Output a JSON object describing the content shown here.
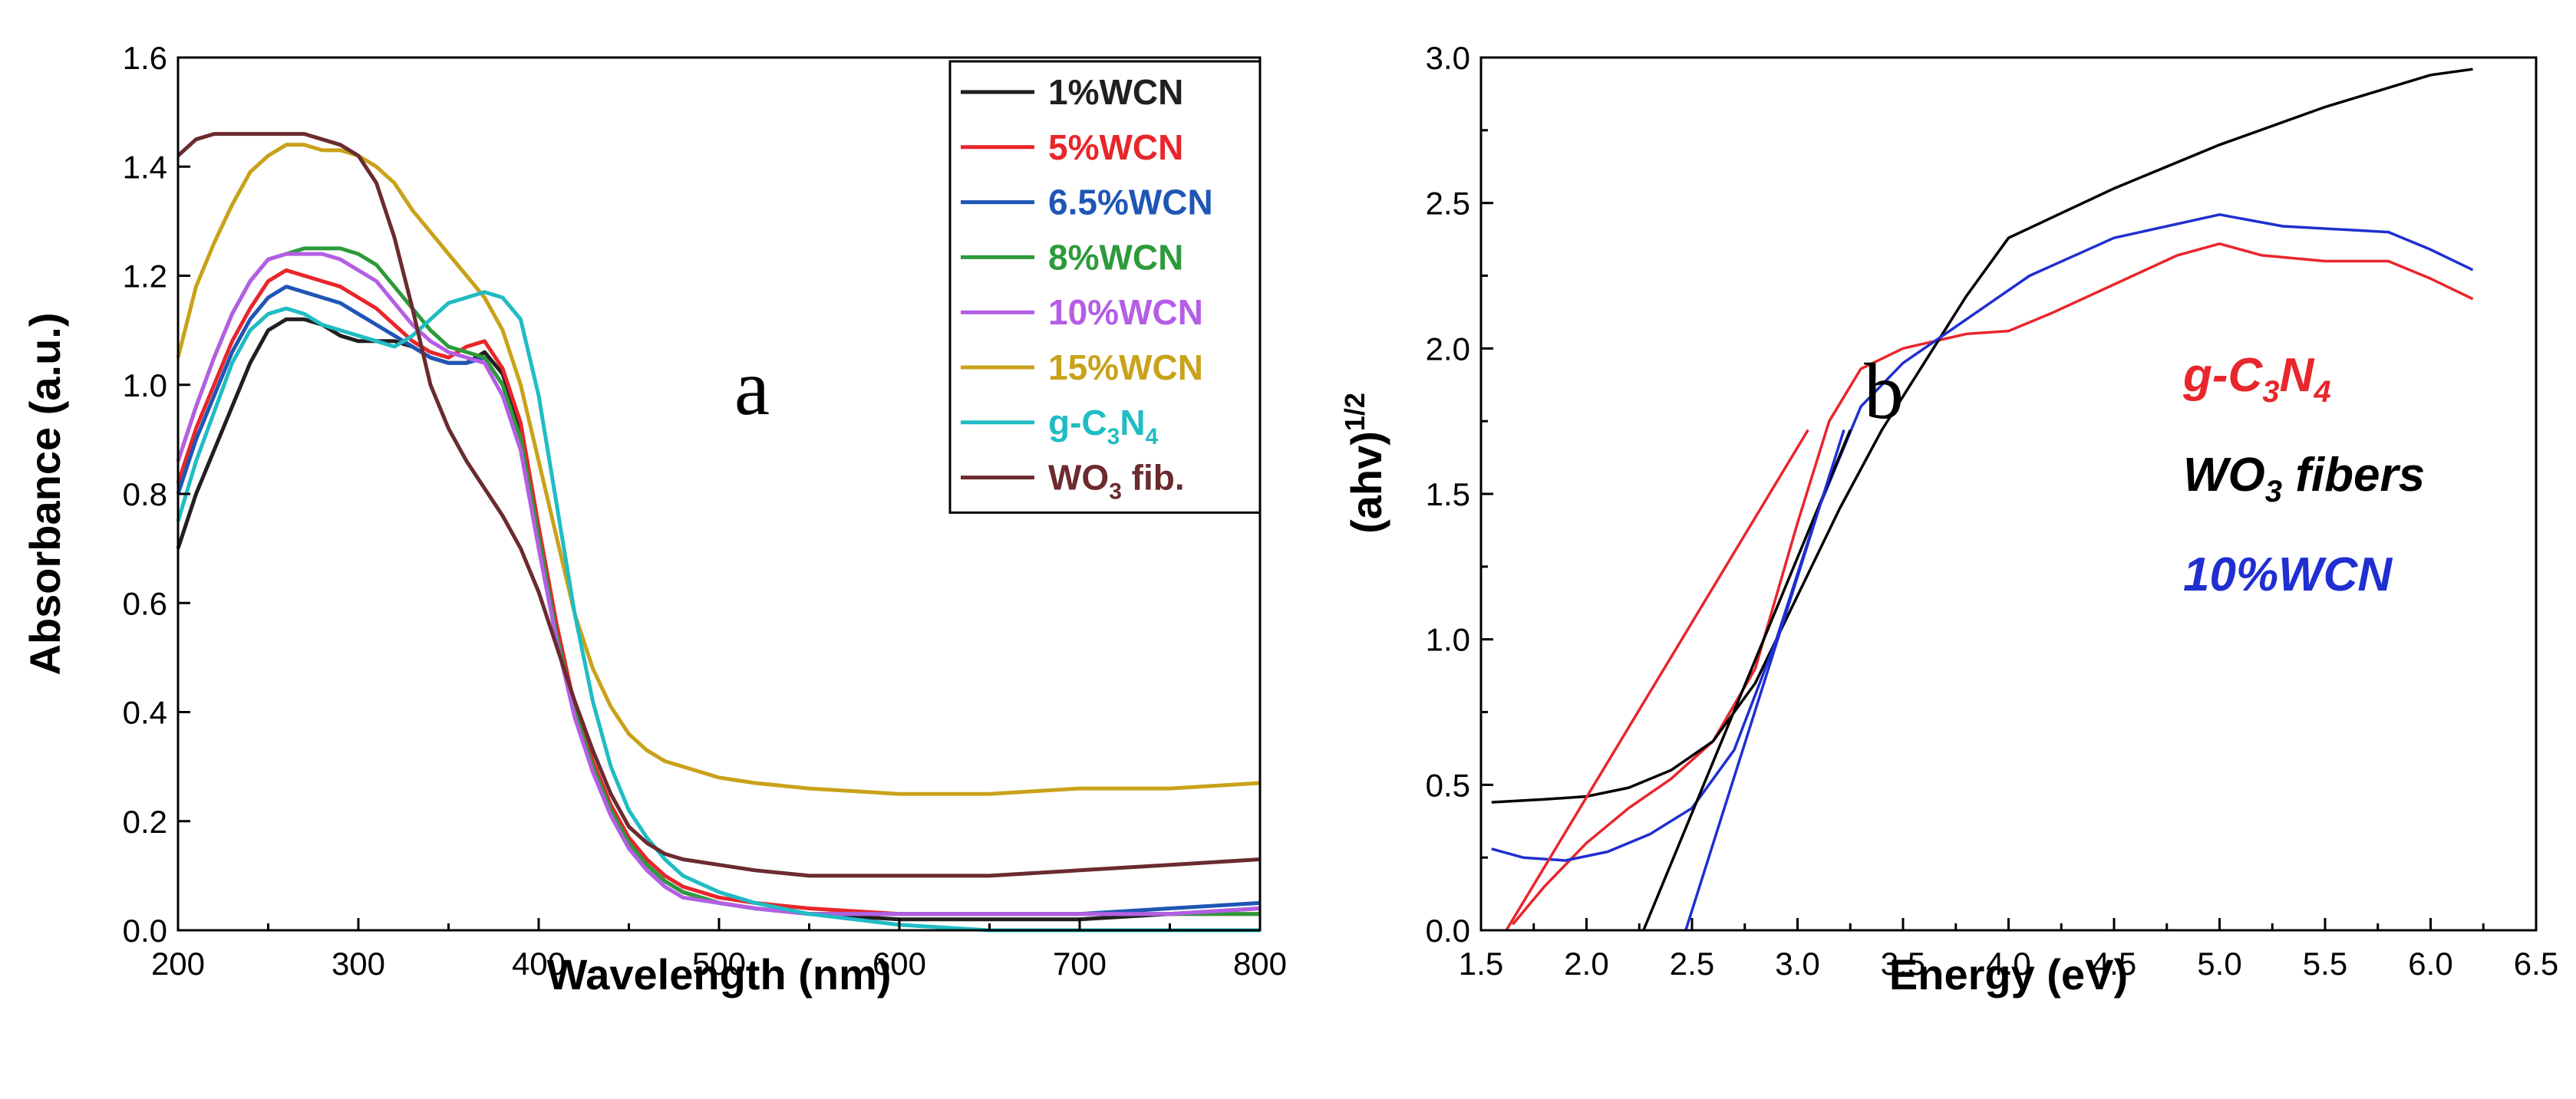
{
  "colors": {
    "1%WCN": "#231f20",
    "5%WCN": "#e8262b",
    "6.5%WCN": "#1f56b5",
    "8%WCN": "#2d9a3b",
    "10%WCN": "#b45ee5",
    "15%WCN": "#c9a21a",
    "g-C3N4": "#20bcc4",
    "WO3 fib.": "#6b2b2f"
  },
  "chart_data": [
    {
      "type": "line",
      "panel_letter": "a",
      "xlabel": "Wavelength (nm)",
      "ylabel": "Absorbance (a.u.)",
      "xlim": [
        200,
        800
      ],
      "ylim": [
        0,
        1.6
      ],
      "xticks": [
        "200",
        "300",
        "400",
        "500",
        "600",
        "700",
        "800"
      ],
      "yticks": [
        "0.0",
        "0.2",
        "0.4",
        "0.6",
        "0.8",
        "1.0",
        "1.2",
        "1.4",
        "1.6"
      ],
      "legend_position": "top-right",
      "legend": [
        {
          "key": "1%WCN",
          "label": "1%WCN"
        },
        {
          "key": "5%WCN",
          "label": "5%WCN"
        },
        {
          "key": "6.5%WCN",
          "label": "6.5%WCN"
        },
        {
          "key": "8%WCN",
          "label": "8%WCN"
        },
        {
          "key": "10%WCN",
          "label": "10%WCN"
        },
        {
          "key": "15%WCN",
          "label": "15%WCN"
        },
        {
          "key": "g-C3N4",
          "label_main": "g-C",
          "label_sub1": "3",
          "label_mid": "N",
          "label_sub2": "4"
        },
        {
          "key": "WO3 fib.",
          "label_main": "WO",
          "label_sub1": "3",
          "label_end": " fib."
        }
      ],
      "series": [
        {
          "name": "1%WCN",
          "x": [
            200,
            210,
            220,
            230,
            240,
            250,
            260,
            270,
            280,
            290,
            300,
            310,
            320,
            330,
            340,
            350,
            360,
            370,
            380,
            390,
            400,
            410,
            420,
            430,
            440,
            450,
            460,
            470,
            480,
            500,
            520,
            550,
            600,
            650,
            700,
            750,
            800
          ],
          "y": [
            0.7,
            0.8,
            0.88,
            0.96,
            1.04,
            1.1,
            1.12,
            1.12,
            1.11,
            1.09,
            1.08,
            1.08,
            1.08,
            1.07,
            1.05,
            1.04,
            1.04,
            1.06,
            1.02,
            0.92,
            0.73,
            0.55,
            0.4,
            0.3,
            0.22,
            0.16,
            0.12,
            0.09,
            0.07,
            0.05,
            0.04,
            0.03,
            0.02,
            0.02,
            0.02,
            0.03,
            0.04
          ]
        },
        {
          "name": "5%WCN",
          "x": [
            200,
            210,
            220,
            230,
            240,
            250,
            260,
            270,
            280,
            290,
            300,
            310,
            320,
            330,
            340,
            350,
            360,
            370,
            380,
            390,
            400,
            410,
            420,
            430,
            440,
            450,
            460,
            470,
            480,
            500,
            520,
            550,
            600,
            650,
            700,
            750,
            800
          ],
          "y": [
            0.82,
            0.92,
            1.0,
            1.08,
            1.14,
            1.19,
            1.21,
            1.2,
            1.19,
            1.18,
            1.16,
            1.14,
            1.11,
            1.08,
            1.06,
            1.05,
            1.07,
            1.08,
            1.03,
            0.93,
            0.74,
            0.56,
            0.41,
            0.31,
            0.23,
            0.17,
            0.13,
            0.1,
            0.08,
            0.06,
            0.05,
            0.04,
            0.03,
            0.03,
            0.03,
            0.03,
            0.03
          ]
        },
        {
          "name": "6.5%WCN",
          "x": [
            200,
            210,
            220,
            230,
            240,
            250,
            260,
            270,
            280,
            290,
            300,
            310,
            320,
            330,
            340,
            350,
            360,
            370,
            380,
            390,
            400,
            410,
            420,
            430,
            440,
            450,
            460,
            470,
            480,
            500,
            520,
            550,
            600,
            650,
            700,
            750,
            800
          ],
          "y": [
            0.8,
            0.9,
            0.98,
            1.06,
            1.12,
            1.16,
            1.18,
            1.17,
            1.16,
            1.15,
            1.13,
            1.11,
            1.09,
            1.07,
            1.05,
            1.04,
            1.04,
            1.05,
            1.0,
            0.9,
            0.72,
            0.54,
            0.4,
            0.3,
            0.22,
            0.16,
            0.12,
            0.09,
            0.07,
            0.05,
            0.04,
            0.03,
            0.03,
            0.03,
            0.03,
            0.04,
            0.05
          ]
        },
        {
          "name": "8%WCN",
          "x": [
            200,
            210,
            220,
            230,
            240,
            250,
            260,
            270,
            280,
            290,
            300,
            310,
            320,
            330,
            340,
            350,
            360,
            370,
            380,
            390,
            400,
            410,
            420,
            430,
            440,
            450,
            460,
            470,
            480,
            500,
            520,
            550,
            600,
            650,
            700,
            750,
            800
          ],
          "y": [
            0.86,
            0.96,
            1.05,
            1.13,
            1.19,
            1.23,
            1.24,
            1.25,
            1.25,
            1.25,
            1.24,
            1.22,
            1.18,
            1.14,
            1.1,
            1.07,
            1.06,
            1.05,
            1.0,
            0.9,
            0.72,
            0.54,
            0.4,
            0.3,
            0.22,
            0.16,
            0.12,
            0.09,
            0.07,
            0.05,
            0.04,
            0.03,
            0.03,
            0.03,
            0.03,
            0.03,
            0.03
          ]
        },
        {
          "name": "10%WCN",
          "x": [
            200,
            210,
            220,
            230,
            240,
            250,
            260,
            270,
            280,
            290,
            300,
            310,
            320,
            330,
            340,
            350,
            360,
            370,
            380,
            390,
            400,
            410,
            420,
            430,
            440,
            450,
            460,
            470,
            480,
            500,
            520,
            550,
            600,
            650,
            700,
            750,
            800
          ],
          "y": [
            0.86,
            0.96,
            1.05,
            1.13,
            1.19,
            1.23,
            1.24,
            1.24,
            1.24,
            1.23,
            1.21,
            1.19,
            1.15,
            1.11,
            1.08,
            1.06,
            1.05,
            1.04,
            0.98,
            0.88,
            0.7,
            0.53,
            0.39,
            0.29,
            0.21,
            0.15,
            0.11,
            0.08,
            0.06,
            0.05,
            0.04,
            0.03,
            0.03,
            0.03,
            0.03,
            0.03,
            0.04
          ]
        },
        {
          "name": "15%WCN",
          "x": [
            200,
            210,
            220,
            230,
            240,
            250,
            260,
            270,
            280,
            290,
            300,
            310,
            320,
            330,
            340,
            350,
            360,
            370,
            380,
            390,
            400,
            410,
            420,
            430,
            440,
            450,
            460,
            470,
            480,
            500,
            520,
            550,
            600,
            650,
            700,
            750,
            800
          ],
          "y": [
            1.05,
            1.18,
            1.26,
            1.33,
            1.39,
            1.42,
            1.44,
            1.44,
            1.43,
            1.43,
            1.42,
            1.4,
            1.37,
            1.32,
            1.28,
            1.24,
            1.2,
            1.16,
            1.1,
            1.0,
            0.86,
            0.72,
            0.58,
            0.48,
            0.41,
            0.36,
            0.33,
            0.31,
            0.3,
            0.28,
            0.27,
            0.26,
            0.25,
            0.25,
            0.26,
            0.26,
            0.27
          ]
        },
        {
          "name": "g-C3N4",
          "x": [
            200,
            210,
            220,
            230,
            240,
            250,
            260,
            270,
            280,
            290,
            300,
            310,
            320,
            330,
            340,
            350,
            360,
            370,
            380,
            390,
            400,
            410,
            420,
            430,
            440,
            450,
            460,
            470,
            480,
            500,
            520,
            550,
            600,
            650,
            700,
            750,
            800
          ],
          "y": [
            0.75,
            0.86,
            0.95,
            1.04,
            1.1,
            1.13,
            1.14,
            1.13,
            1.11,
            1.1,
            1.09,
            1.08,
            1.07,
            1.09,
            1.12,
            1.15,
            1.16,
            1.17,
            1.16,
            1.12,
            0.98,
            0.78,
            0.58,
            0.42,
            0.3,
            0.22,
            0.17,
            0.13,
            0.1,
            0.07,
            0.05,
            0.03,
            0.01,
            0.0,
            0.0,
            0.0,
            0.0
          ]
        },
        {
          "name": "WO3 fib.",
          "x": [
            200,
            210,
            220,
            230,
            240,
            250,
            260,
            270,
            280,
            290,
            300,
            310,
            320,
            330,
            340,
            350,
            360,
            370,
            380,
            390,
            400,
            410,
            420,
            430,
            440,
            450,
            460,
            470,
            480,
            500,
            520,
            550,
            600,
            650,
            700,
            750,
            800
          ],
          "y": [
            1.42,
            1.45,
            1.46,
            1.46,
            1.46,
            1.46,
            1.46,
            1.46,
            1.45,
            1.44,
            1.42,
            1.37,
            1.27,
            1.14,
            1.0,
            0.92,
            0.86,
            0.81,
            0.76,
            0.7,
            0.62,
            0.52,
            0.42,
            0.33,
            0.25,
            0.19,
            0.16,
            0.14,
            0.13,
            0.12,
            0.11,
            0.1,
            0.1,
            0.1,
            0.11,
            0.12,
            0.13
          ]
        }
      ]
    },
    {
      "type": "line",
      "panel_letter": "b",
      "xlabel": "Energy (eV)",
      "ylabel_main": "(ahv)",
      "ylabel_sup": "1/2",
      "xlim": [
        1.5,
        6.5
      ],
      "ylim": [
        0,
        3.0
      ],
      "xticks": [
        "1.5",
        "2.0",
        "2.5",
        "3.0",
        "3.5",
        "4.0",
        "4.5",
        "5.0",
        "5.5",
        "6.0",
        "6.5"
      ],
      "yticks": [
        "0.0",
        "0.5",
        "1.0",
        "1.5",
        "2.0",
        "2.5",
        "3.0"
      ],
      "legend_position": "right",
      "legend": [
        {
          "key": "g-C3N4",
          "label_main": "g-C",
          "label_sub1": "3",
          "label_mid": "N",
          "label_sub2": "4",
          "color": "#e8262b"
        },
        {
          "key": "WO3 fibers",
          "label_main": "WO",
          "label_sub1": "3",
          "label_end": " fibers",
          "color": "#000000"
        },
        {
          "key": "10%WCN",
          "label": "10%WCN",
          "color": "#1f2fd0"
        }
      ],
      "series": [
        {
          "name": "g-C3N4",
          "color": "#e8262b",
          "x": [
            1.65,
            1.8,
            2.0,
            2.2,
            2.4,
            2.6,
            2.8,
            3.0,
            3.15,
            3.3,
            3.5,
            3.8,
            4.0,
            4.2,
            4.5,
            4.8,
            5.0,
            5.2,
            5.5,
            5.8,
            6.0,
            6.2
          ],
          "y": [
            0.02,
            0.15,
            0.3,
            0.42,
            0.52,
            0.65,
            0.9,
            1.4,
            1.75,
            1.93,
            2.0,
            2.05,
            2.06,
            2.12,
            2.22,
            2.32,
            2.36,
            2.32,
            2.3,
            2.3,
            2.24,
            2.17
          ]
        },
        {
          "name": "WO3 fibers",
          "color": "#000000",
          "x": [
            1.55,
            1.8,
            2.0,
            2.2,
            2.4,
            2.6,
            2.8,
            3.0,
            3.2,
            3.4,
            3.6,
            3.8,
            4.0,
            4.5,
            5.0,
            5.5,
            6.0,
            6.2
          ],
          "y": [
            0.44,
            0.45,
            0.46,
            0.49,
            0.55,
            0.65,
            0.85,
            1.15,
            1.45,
            1.72,
            1.95,
            2.18,
            2.38,
            2.55,
            2.7,
            2.83,
            2.94,
            2.96
          ]
        },
        {
          "name": "10%WCN",
          "color": "#1f2fd0",
          "x": [
            1.55,
            1.7,
            1.9,
            2.1,
            2.3,
            2.5,
            2.7,
            2.9,
            3.1,
            3.3,
            3.5,
            3.7,
            3.9,
            4.1,
            4.5,
            5.0,
            5.3,
            5.8,
            6.0,
            6.2
          ],
          "y": [
            0.28,
            0.25,
            0.24,
            0.27,
            0.33,
            0.42,
            0.62,
            1.0,
            1.45,
            1.8,
            1.95,
            2.05,
            2.15,
            2.25,
            2.38,
            2.46,
            2.42,
            2.4,
            2.34,
            2.27
          ]
        },
        {
          "name": "tangent-g-C3N4",
          "color": "#e8262b",
          "x": [
            1.62,
            3.05
          ],
          "y": [
            0.0,
            1.72
          ]
        },
        {
          "name": "tangent-WO3",
          "color": "#000000",
          "x": [
            2.27,
            3.25
          ],
          "y": [
            0.0,
            1.72
          ]
        },
        {
          "name": "tangent-10%WCN",
          "color": "#1f2fd0",
          "x": [
            2.47,
            3.22
          ],
          "y": [
            0.0,
            1.72
          ]
        }
      ]
    }
  ]
}
